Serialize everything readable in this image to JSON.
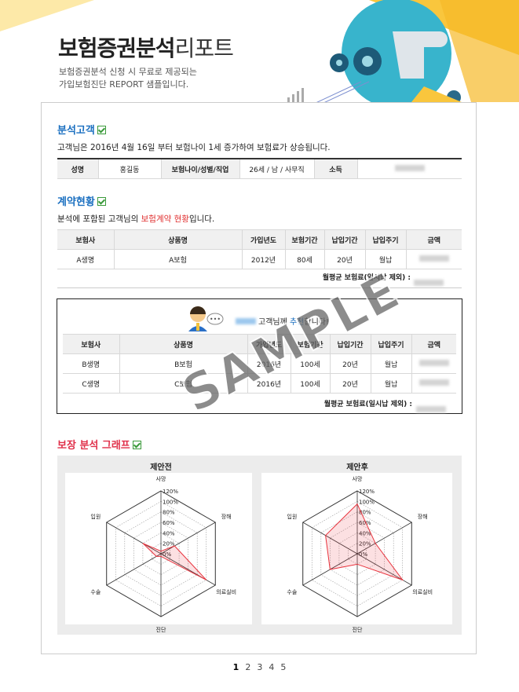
{
  "header": {
    "title_main": "보험증권분석",
    "title_sub": "리포트",
    "subtitle": [
      "보험증권분석 신청 시 무료로 제공되는",
      "가입보험진단 REPORT 샘플입니다."
    ]
  },
  "customer": {
    "heading": "분석고객",
    "sentence": "고객님은 2016년 4월 16일 부터 보험나이 1세 증가하여 보험료가 상승됩니다.",
    "cells": [
      "성명",
      "홍길동",
      "보험나이/성별/직업",
      "26세 / 남 / 사무직",
      "소득"
    ]
  },
  "contract": {
    "heading": "계약현황",
    "sentence_parts": [
      "분석에 포함된 고객님의 ",
      "보험계약 현황",
      "입니다."
    ],
    "columns": [
      "보험사",
      "상품명",
      "가입년도",
      "보험기간",
      "납입기간",
      "납입주기",
      "금액"
    ],
    "rows": [
      [
        "A생명",
        "A보험",
        "2012년",
        "80세",
        "20년",
        "월납"
      ]
    ],
    "total_label": "월평균 보험료(일시납 제외) :"
  },
  "recommend": {
    "message_parts": [
      "고객님께 ",
      "추천",
      "합니다!"
    ],
    "columns": [
      "보험사",
      "상품명",
      "가입년도",
      "보험기간",
      "납입기간",
      "납입주기",
      "금액"
    ],
    "rows": [
      [
        "B생명",
        "B보험",
        "2016년",
        "100세",
        "20년",
        "월납"
      ],
      [
        "C생명",
        "C보험",
        "2016년",
        "100세",
        "20년",
        "월납"
      ]
    ],
    "total_label": "월평균 보험료(일시납 제외) :"
  },
  "graph": {
    "heading": "보장 분석 그래프"
  },
  "chart_data": [
    {
      "type": "radar",
      "title": "제안전",
      "categories": [
        "사망",
        "장해",
        "의료실비",
        "진단",
        "수술",
        "입원"
      ],
      "values": [
        5,
        30,
        100,
        5,
        10,
        40
      ],
      "color": "#e8323c",
      "ylim": [
        0,
        120
      ],
      "yticks": [
        {
          "value": 0,
          "label": "0%"
        },
        {
          "value": 20,
          "label": "20%"
        },
        {
          "value": 40,
          "label": "40%"
        },
        {
          "value": 60,
          "label": "60%"
        },
        {
          "value": 80,
          "label": "80%"
        },
        {
          "value": 100,
          "label": "100%"
        },
        {
          "value": 120,
          "label": "120%"
        }
      ]
    },
    {
      "type": "radar",
      "title": "제안후",
      "categories": [
        "사망",
        "장해",
        "의료실비",
        "진단",
        "수술",
        "입원"
      ],
      "values": [
        95,
        40,
        100,
        20,
        60,
        70
      ],
      "color": "#e8323c",
      "ylim": [
        0,
        120
      ],
      "yticks": [
        {
          "value": 0,
          "label": "0%"
        },
        {
          "value": 20,
          "label": "20%"
        },
        {
          "value": 40,
          "label": "40%"
        },
        {
          "value": 60,
          "label": "60%"
        },
        {
          "value": 80,
          "label": "80%"
        },
        {
          "value": 100,
          "label": "100%"
        },
        {
          "value": 120,
          "label": "120%"
        }
      ]
    }
  ],
  "watermark": "SAMPLE",
  "pagination": [
    "1",
    "2",
    "3",
    "4",
    "5"
  ]
}
